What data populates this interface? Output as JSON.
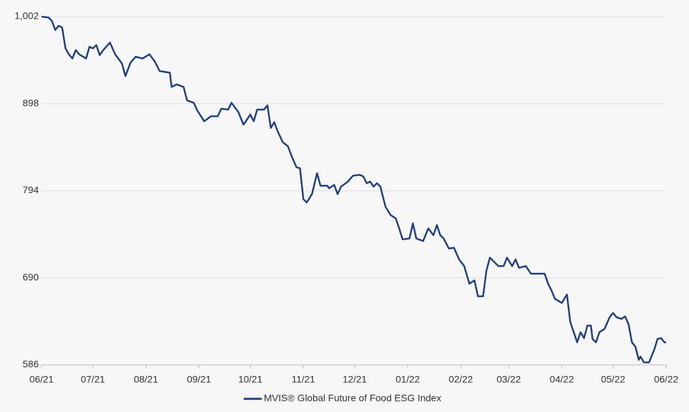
{
  "chart_data": {
    "type": "line",
    "x": [
      0,
      4,
      6,
      8,
      10,
      12,
      14,
      16,
      18,
      20,
      22,
      26,
      28,
      30,
      32,
      34,
      36,
      40,
      43,
      47,
      49,
      52,
      55,
      59,
      63,
      66,
      69,
      75,
      76,
      79,
      83,
      85,
      89,
      91,
      95,
      99,
      103,
      105,
      109,
      111,
      115,
      118,
      122,
      124,
      126,
      130,
      132,
      134,
      136,
      138,
      141,
      144,
      146,
      149,
      151,
      153,
      155,
      158,
      161,
      163,
      167,
      168,
      171,
      173,
      175,
      179,
      182,
      186,
      188,
      190,
      192,
      194,
      196,
      198,
      201,
      204,
      207,
      209,
      211,
      215,
      217,
      219,
      223,
      226,
      229,
      231,
      233,
      235,
      238,
      241,
      244,
      247,
      250,
      253,
      255,
      258,
      260,
      262,
      265,
      267,
      270,
      272,
      275,
      277,
      279,
      283,
      286,
      291,
      294,
      296,
      298,
      300,
      304,
      307,
      309,
      311,
      313,
      315,
      317,
      319,
      321,
      322,
      324,
      326,
      329,
      332,
      334,
      336,
      339,
      341,
      343,
      345,
      347,
      349,
      350,
      352,
      355,
      358,
      360,
      362,
      364,
      365
    ],
    "series": [
      {
        "name": "MVIS® Global Future of Food ESG Index",
        "color": "#1f3f7f",
        "values": [
          1002,
          1001,
          997,
          986,
          991,
          989,
          964,
          957,
          952,
          962,
          957,
          952,
          966,
          964,
          968,
          956,
          962,
          971,
          957,
          946,
          931,
          947,
          954,
          952,
          957,
          949,
          937,
          935,
          918,
          921,
          918,
          902,
          899,
          890,
          877,
          883,
          883,
          892,
          891,
          899,
          888,
          873,
          885,
          877,
          891,
          891,
          896,
          869,
          876,
          865,
          852,
          847,
          836,
          822,
          821,
          784,
          780,
          790,
          815,
          800,
          800,
          797,
          801,
          790,
          799,
          805,
          812,
          813,
          811,
          803,
          805,
          799,
          803,
          799,
          775,
          765,
          761,
          749,
          736,
          737,
          755,
          737,
          734,
          749,
          741,
          753,
          741,
          737,
          725,
          726,
          712,
          704,
          683,
          687,
          668,
          668,
          699,
          714,
          708,
          704,
          704,
          714,
          704,
          712,
          702,
          704,
          695,
          695,
          695,
          683,
          675,
          665,
          660,
          670,
          637,
          625,
          613,
          625,
          618,
          633,
          633,
          617,
          613,
          625,
          629,
          643,
          648,
          643,
          641,
          644,
          635,
          613,
          608,
          592,
          596,
          589,
          589,
          604,
          617,
          618,
          613,
          613
        ]
      }
    ],
    "xlim": [
      0,
      365
    ],
    "xticks": [
      {
        "value": 0,
        "label": "06/21"
      },
      {
        "value": 30,
        "label": "07/21"
      },
      {
        "value": 61,
        "label": "08/21"
      },
      {
        "value": 92,
        "label": "09/21"
      },
      {
        "value": 122,
        "label": "10/21"
      },
      {
        "value": 153,
        "label": "11/21"
      },
      {
        "value": 183,
        "label": "12/21"
      },
      {
        "value": 214,
        "label": "01/22"
      },
      {
        "value": 245,
        "label": "02/22"
      },
      {
        "value": 273,
        "label": "03/22"
      },
      {
        "value": 304,
        "label": "04/22"
      },
      {
        "value": 334,
        "label": "05/22"
      },
      {
        "value": 365,
        "label": "06/22"
      }
    ],
    "ylim": [
      586,
      1002
    ],
    "yticks": [
      586,
      690,
      794,
      898,
      {
        "value": 1002,
        "label": "1,002"
      }
    ],
    "grid": true,
    "legend": "bottom"
  }
}
